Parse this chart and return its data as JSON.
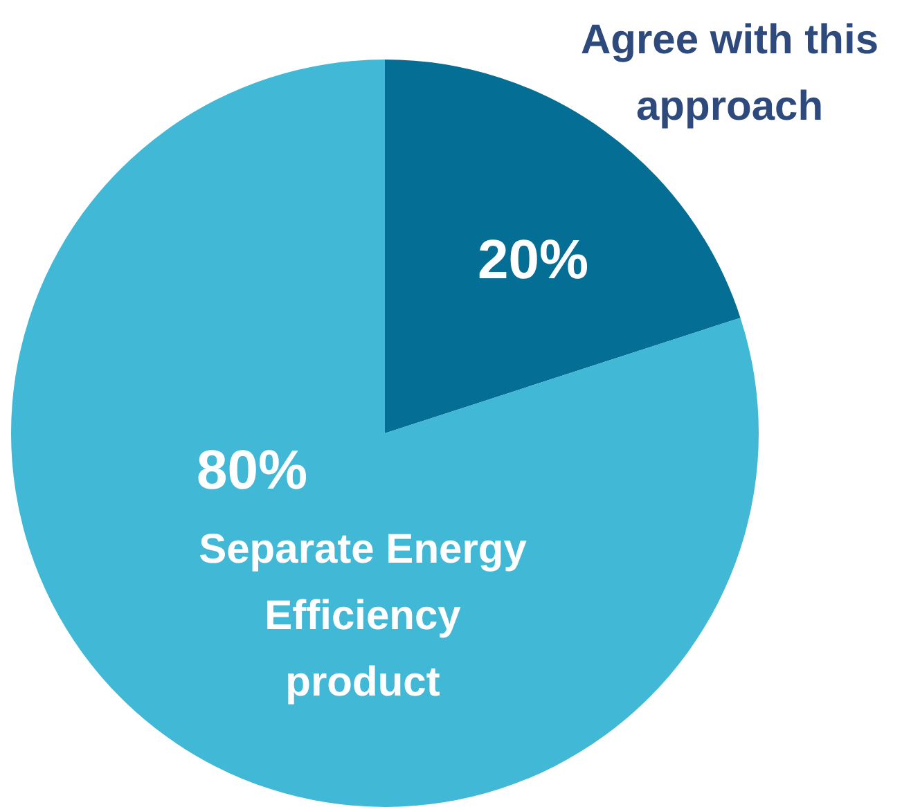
{
  "chart_data": {
    "type": "pie",
    "categories": [
      "Agree with this approach",
      "Separate Energy Efficiency product"
    ],
    "values": [
      20,
      80
    ],
    "colors": [
      "#046e94",
      "#41b8d6"
    ],
    "value_labels": [
      "20%",
      "80%"
    ]
  }
}
